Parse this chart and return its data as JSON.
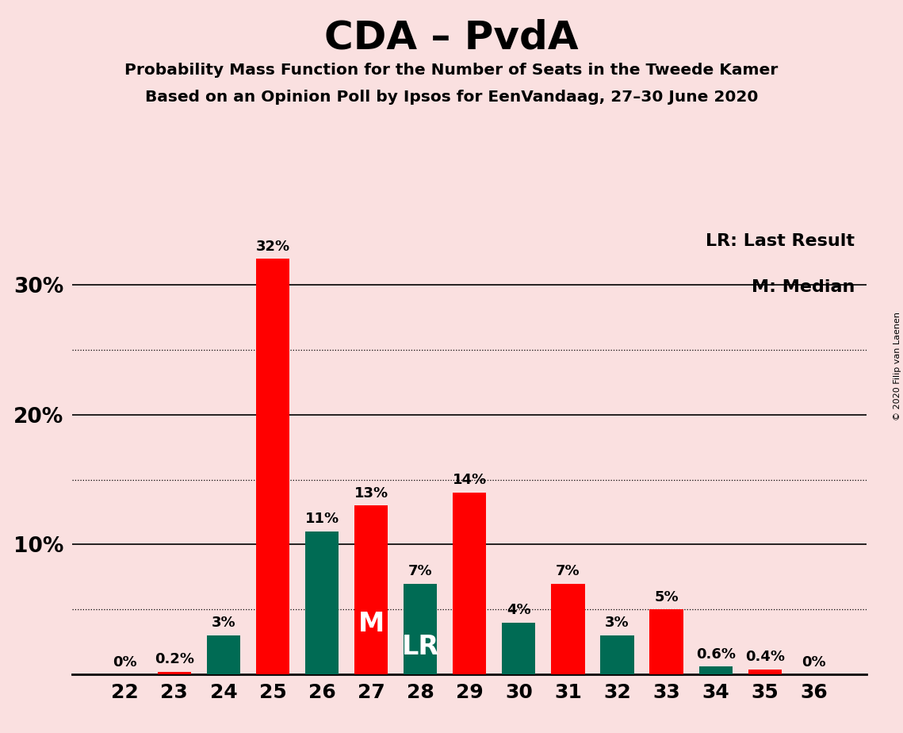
{
  "title": "CDA – PvdA",
  "subtitle1": "Probability Mass Function for the Number of Seats in the Tweede Kamer",
  "subtitle2": "Based on an Opinion Poll by Ipsos for EenVandaag, 27–30 June 2020",
  "copyright": "© 2020 Filip van Laenen",
  "seats": [
    22,
    23,
    24,
    25,
    26,
    27,
    28,
    29,
    30,
    31,
    32,
    33,
    34,
    35,
    36
  ],
  "values": [
    0.0,
    0.2,
    3.0,
    32.0,
    11.0,
    13.0,
    7.0,
    14.0,
    4.0,
    7.0,
    3.0,
    5.0,
    0.6,
    0.4,
    0.0
  ],
  "colors": [
    "#FF0000",
    "#FF0000",
    "#006B54",
    "#FF0000",
    "#006B54",
    "#FF0000",
    "#006B54",
    "#FF0000",
    "#006B54",
    "#FF0000",
    "#006B54",
    "#FF0000",
    "#006B54",
    "#FF0000",
    "#FF0000"
  ],
  "labels": [
    "0%",
    "0.2%",
    "3%",
    "32%",
    "11%",
    "13%",
    "7%",
    "14%",
    "4%",
    "7%",
    "3%",
    "5%",
    "0.6%",
    "0.4%",
    "0%"
  ],
  "bar_labels": {
    "5": {
      "text": "M",
      "color": "white"
    },
    "6": {
      "text": "LR",
      "color": "white"
    }
  },
  "legend_lr": "LR: Last Result",
  "legend_m": "M: Median",
  "background_color": "#FAE0E0",
  "ylim_max": 35,
  "solid_grid": [
    10,
    20,
    30
  ],
  "dotted_grid": [
    5,
    15,
    25
  ]
}
